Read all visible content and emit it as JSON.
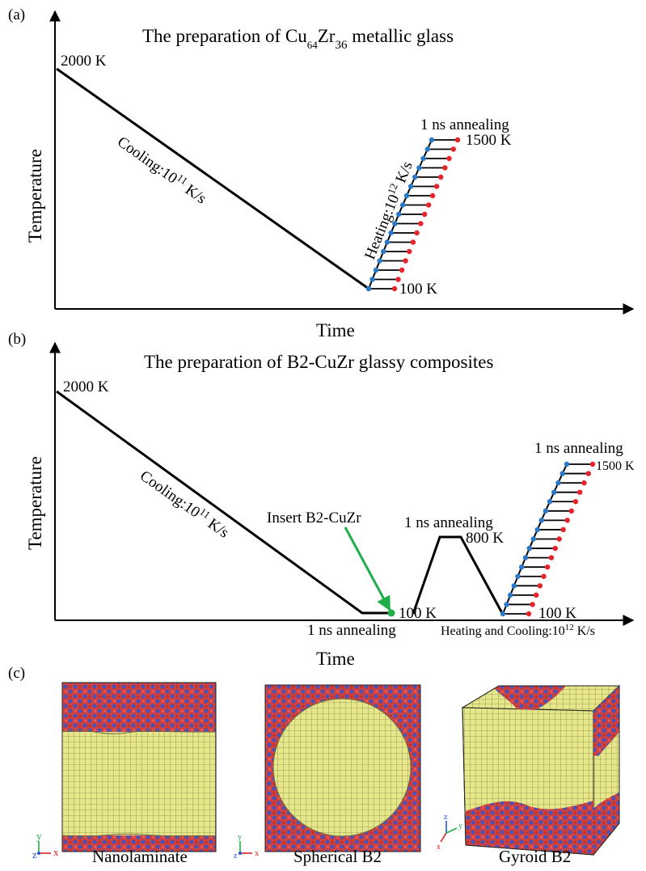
{
  "panel_a": {
    "letter": "(a)",
    "title_pre": "The preparation of Cu",
    "title_sub1": "64",
    "title_mid": "Zr",
    "title_sub2": "36",
    "title_post": " metallic glass",
    "y_axis_label": "Temperature",
    "x_axis_label": "Time",
    "start_temp": "2000 K",
    "cooling_pre": "Cooling:10",
    "cooling_exp": "11",
    "cooling_post": " K/s",
    "heating_pre": "Heating:10",
    "heating_exp": "12",
    "heating_post": " K/s",
    "annealing": "1 ns annealing",
    "high_temp": "1500 K",
    "low_temp": "100 K"
  },
  "panel_b": {
    "letter": "(b)",
    "title": "The preparation of B2-CuZr glassy composites",
    "y_axis_label": "Temperature",
    "x_axis_label": "Time",
    "start_temp": "2000 K",
    "cooling_pre": "Cooling:10",
    "cooling_exp": "11",
    "cooling_post": " K/s",
    "insert_label": "Insert B2-CuZr",
    "annealing_low": "1 ns annealing",
    "low_temp_a": "100 K",
    "annealing_mid": "1 ns annealing",
    "mid_temp": "800 K",
    "low_temp_b": "100 K",
    "annealing_high": "1 ns annealing",
    "high_temp": "1500 K",
    "rate_pre": "Heating and Cooling:10",
    "rate_exp": "12",
    "rate_post": " K/s"
  },
  "panel_c": {
    "letter": "(c)",
    "captions": [
      "Nanolaminate",
      "Spherical B2",
      "Gyroid B2"
    ],
    "axis_labels": {
      "x": "x",
      "y": "y",
      "z": "z"
    }
  },
  "colors": {
    "line": "#000000",
    "heating_point": "#2a78c8",
    "annealed_point": "#e8242b",
    "insert_arrow": "#1fae4a",
    "b2_phase": "#e6e68a",
    "glass_red": "#d2403c",
    "glass_blue": "#4a52b8"
  }
}
